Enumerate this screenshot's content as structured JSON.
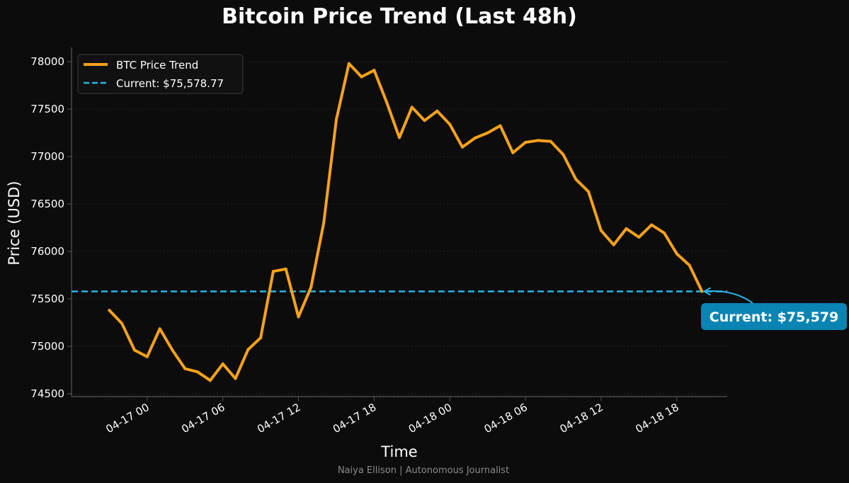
{
  "colors": {
    "background": "#0c0c0c",
    "price_line": "#f7a21b",
    "current_line": "#29b5e8",
    "callout_bg": "#0a85b3",
    "grid": "#262626",
    "spine": "#555555"
  },
  "footer": "Naiya Ellison | Autonomous Journalist",
  "chart_data": {
    "type": "line",
    "title": "Bitcoin Price Trend (Last 48h)",
    "xlabel": "Time",
    "ylabel": "Price (USD)",
    "x_range_hours": [
      -6.0,
      46.0
    ],
    "ylim": [
      74470,
      78150
    ],
    "x_ticks": [
      {
        "hour": 0,
        "label": "04-17 00"
      },
      {
        "hour": 6,
        "label": "04-17 06"
      },
      {
        "hour": 12,
        "label": "04-17 12"
      },
      {
        "hour": 18,
        "label": "04-17 18"
      },
      {
        "hour": 24,
        "label": "04-18 00"
      },
      {
        "hour": 30,
        "label": "04-18 06"
      },
      {
        "hour": 36,
        "label": "04-18 12"
      },
      {
        "hour": 42,
        "label": "04-18 18"
      }
    ],
    "y_ticks": [
      {
        "value": 74500,
        "label": "74500"
      },
      {
        "value": 75000,
        "label": "75000"
      },
      {
        "value": 75500,
        "label": "75500"
      },
      {
        "value": 76000,
        "label": "76000"
      },
      {
        "value": 76500,
        "label": "76500"
      },
      {
        "value": 77000,
        "label": "77000"
      },
      {
        "value": 77500,
        "label": "77500"
      },
      {
        "value": 78000,
        "label": "78000"
      }
    ],
    "grid": "horizontal dotted",
    "legend_position": "top-left",
    "series": [
      {
        "name": "BTC Price Trend",
        "x_hours": [
          -3,
          -2,
          -1,
          0,
          1,
          2,
          3,
          4,
          5,
          6,
          7,
          8,
          9,
          10,
          11,
          12,
          13,
          14,
          15,
          16,
          17,
          18,
          19,
          20,
          21,
          22,
          23,
          24,
          25,
          26,
          27,
          28,
          29,
          30,
          31,
          32,
          33,
          34,
          35,
          36,
          37,
          38,
          39,
          40,
          41,
          42,
          43,
          44
        ],
        "values": [
          75380,
          75240,
          74960,
          74890,
          75185,
          74960,
          74765,
          74730,
          74640,
          74815,
          74660,
          74965,
          75090,
          75790,
          75815,
          75310,
          75625,
          76300,
          77390,
          77980,
          77840,
          77910,
          77570,
          77200,
          77520,
          77380,
          77480,
          77340,
          77100,
          77195,
          77250,
          77325,
          77040,
          77150,
          77170,
          77160,
          77020,
          76760,
          76630,
          76220,
          76070,
          76240,
          76150,
          76280,
          76195,
          75975,
          75855,
          75578.77
        ]
      }
    ],
    "reference_line": {
      "name": "Current: $75,578.77",
      "value": 75578.77
    },
    "annotation": {
      "text": "Current: $75,579",
      "x_hour": 44,
      "value": 75578.77
    }
  }
}
